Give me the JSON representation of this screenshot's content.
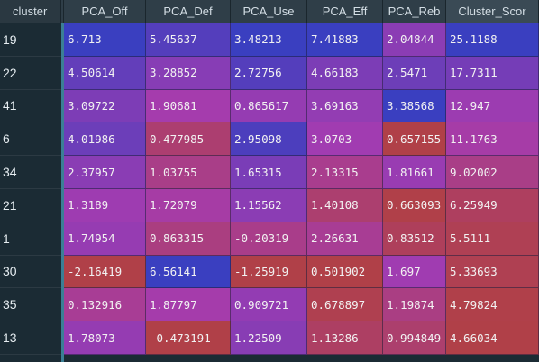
{
  "table": {
    "index_header": "cluster",
    "columns": [
      "PCA_Off",
      "PCA_Def",
      "PCA_Use",
      "PCA_Eff",
      "PCA_Reb",
      "Cluster_Scor"
    ],
    "rows": [
      {
        "cluster": "19",
        "values": [
          "6.713",
          "5.45637",
          "3.48213",
          "7.41883",
          "2.04844",
          "25.1188"
        ]
      },
      {
        "cluster": "22",
        "values": [
          "4.50614",
          "3.28852",
          "2.72756",
          "4.66183",
          "2.5471",
          "17.7311"
        ]
      },
      {
        "cluster": "41",
        "values": [
          "3.09722",
          "1.90681",
          "0.865617",
          "3.69163",
          "3.38568",
          "12.947"
        ]
      },
      {
        "cluster": "6",
        "values": [
          "4.01986",
          "0.477985",
          "2.95098",
          "3.0703",
          "0.657155",
          "11.1763"
        ]
      },
      {
        "cluster": "34",
        "values": [
          "2.37957",
          "1.03755",
          "1.65315",
          "2.13315",
          "1.81661",
          "9.02002"
        ]
      },
      {
        "cluster": "21",
        "values": [
          "1.3189",
          "1.72079",
          "1.15562",
          "1.40108",
          "0.663093",
          "6.25949"
        ]
      },
      {
        "cluster": "1",
        "values": [
          "1.74954",
          "0.863315",
          "-0.20319",
          "2.26631",
          "0.83512",
          "5.5111"
        ]
      },
      {
        "cluster": "30",
        "values": [
          "-2.16419",
          "6.56141",
          "-1.25919",
          "0.501902",
          "1.697",
          "5.33693"
        ]
      },
      {
        "cluster": "35",
        "values": [
          "0.132916",
          "1.87797",
          "0.909721",
          "0.678897",
          "1.19874",
          "4.79824"
        ]
      },
      {
        "cluster": "13",
        "values": [
          "1.78073",
          "-0.473191",
          "1.22509",
          "1.13286",
          "0.994849",
          "4.66034"
        ]
      }
    ]
  },
  "colors": {
    "background": "#1b2b34",
    "header": "#2f3e48",
    "divider": "#3b7f95",
    "high": "#3a3fc0",
    "mid": "#a53cb0",
    "low": "#b04048"
  }
}
